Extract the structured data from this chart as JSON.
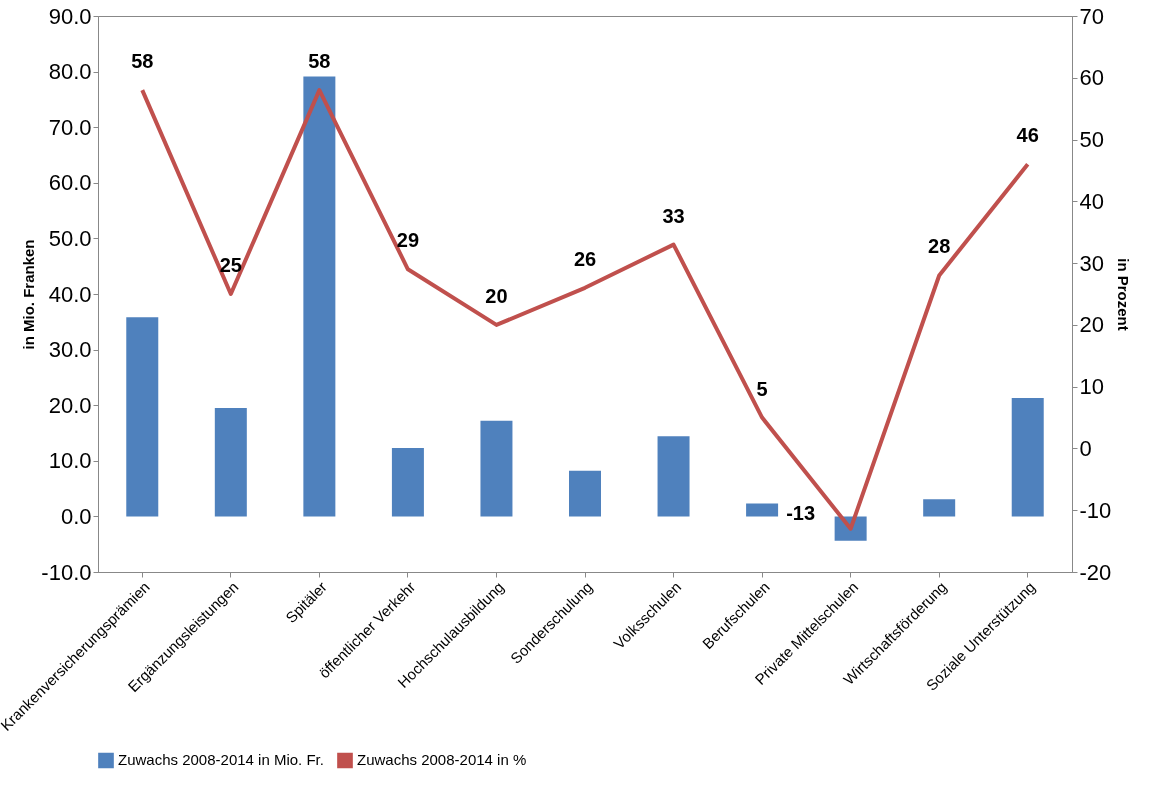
{
  "chart_data": {
    "type": "bar",
    "categories": [
      "Krankenversicherungsprämien",
      "Ergänzungsleistungen",
      "Spitäler",
      "öffentlicher Verkehr",
      "Hochschulausbildung",
      "Sonderschulung",
      "Volksschulen",
      "Berufschulen",
      "Private Mittelschulen",
      "Wirtschaftsförderung",
      "Soziale Unterstützung"
    ],
    "ylabel": "in Mio. Franken",
    "y2label": "in Prozent",
    "ylim": [
      -10,
      90
    ],
    "yticks": [
      {
        "value": -10,
        "label": "-10.0"
      },
      {
        "value": 0,
        "label": "0.0"
      },
      {
        "value": 10,
        "label": "10.0"
      },
      {
        "value": 20,
        "label": "20.0"
      },
      {
        "value": 30,
        "label": "30.0"
      },
      {
        "value": 40,
        "label": "40.0"
      },
      {
        "value": 50,
        "label": "50.0"
      },
      {
        "value": 60,
        "label": "60.0"
      },
      {
        "value": 70,
        "label": "70.0"
      },
      {
        "value": 80,
        "label": "80.0"
      },
      {
        "value": 90,
        "label": "90.0"
      }
    ],
    "y2lim": [
      -20,
      70
    ],
    "y2ticks": [
      -20,
      -10,
      0,
      10,
      20,
      30,
      40,
      50,
      60,
      70
    ],
    "series": [
      {
        "name": "Zuwachs 2008-2014 in Mio. Fr.",
        "color": "#4f81bd",
        "values": [
          35.8,
          19.5,
          79.1,
          12.3,
          17.2,
          8.2,
          14.4,
          2.3,
          -4.4,
          3.1,
          21.3
        ]
      },
      {
        "name": "Zuwachs 2008-2014 in %",
        "type": "line",
        "axis": "y2",
        "color": "#c0504d",
        "values": [
          58,
          25,
          58,
          29,
          20,
          26,
          33,
          5,
          -13,
          28,
          46
        ],
        "value_labels": [
          "58",
          "25",
          "58",
          "29",
          "20",
          "26",
          "33",
          "5",
          "-13",
          "28",
          "46"
        ]
      }
    ],
    "legend": "bottom",
    "grid": false
  }
}
